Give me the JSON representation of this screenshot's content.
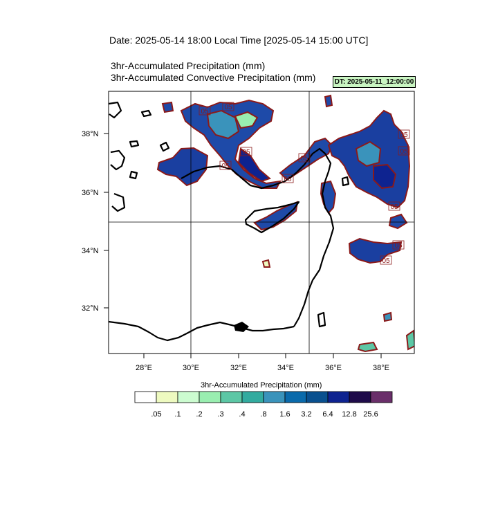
{
  "header": {
    "date_line": "Date: 2025-05-14  18:00 Local Time [2025-05-14  15:00 UTC]",
    "title_line_1": "3hr-Accumulated Precipitation   (mm)",
    "title_line_2": "3hr-Accumulated Convective Precipitation   (mm)",
    "dt_badge": "DT: 2025-05-11_12:00:00"
  },
  "map": {
    "lat_labels": [
      "38°N",
      "36°N",
      "34°N",
      "32°N"
    ],
    "lon_labels": [
      "28°E",
      "30°E",
      "32°E",
      "34°E",
      "36°E",
      "38°E"
    ],
    "contour_labels": [
      "05",
      "05",
      "05",
      "05",
      "05",
      "05",
      "05",
      "05",
      "05",
      "05",
      "05"
    ]
  },
  "legend": {
    "title": "3hr-Accumulated Precipitation  (mm)",
    "colors": [
      "#ffffff",
      "#eefac0",
      "#ccfcd0",
      "#99eeb0",
      "#5cc7a5",
      "#32ab9f",
      "#3a93bb",
      "#0a6aab",
      "#09508f",
      "#0e2390",
      "#1f0b4a",
      "#6a2f6a"
    ],
    "labels": [
      ".05",
      ".1",
      ".2",
      ".3",
      ".4",
      ".8",
      "1.6",
      "3.2",
      "6.4",
      "12.8",
      "25.6"
    ]
  },
  "colors": {
    "contour_outline": "#8b1a1a",
    "coastline": "#000000",
    "badge_background": "#c9f5c2"
  }
}
